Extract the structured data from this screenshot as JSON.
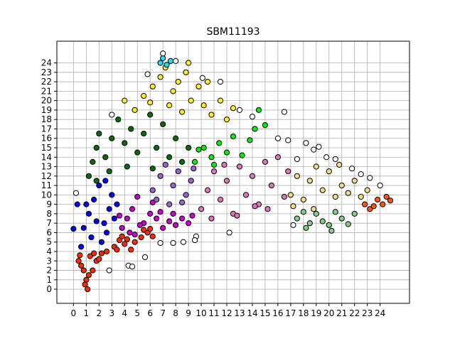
{
  "chart_data": {
    "type": "scatter",
    "title": "SBM11193",
    "xlabel": "",
    "ylabel": "",
    "xlim": [
      -1.3,
      26.3
    ],
    "ylim": [
      -1.5,
      26.3
    ],
    "xticks": [
      "0",
      "1",
      "2",
      "3",
      "4",
      "5",
      "6",
      "7",
      "8",
      "9",
      "10",
      "11",
      "12",
      "13",
      "14",
      "15",
      "16",
      "17",
      "18",
      "19",
      "20",
      "21",
      "22",
      "23",
      "24"
    ],
    "yticks": [
      "0",
      "1",
      "2",
      "3",
      "4",
      "5",
      "6",
      "7",
      "8",
      "9",
      "10",
      "11",
      "12",
      "13",
      "14",
      "15",
      "16",
      "17",
      "18",
      "19",
      "20",
      "21",
      "22",
      "23",
      "24"
    ],
    "grid": true,
    "marker": "circle",
    "marker_edge": "#000000",
    "clusters": [
      {
        "color": "#ff2a00",
        "points": [
          [
            0.4,
            3.0
          ],
          [
            0.8,
            2.0
          ],
          [
            1.0,
            1.0
          ],
          [
            1.1,
            0.0
          ],
          [
            1.3,
            3.5
          ],
          [
            1.8,
            3.0
          ],
          [
            0.6,
            2.5
          ],
          [
            1.5,
            2.0
          ],
          [
            2.2,
            3.8
          ],
          [
            2.6,
            4.0
          ],
          [
            1.2,
            1.5
          ],
          [
            0.9,
            0.5
          ],
          [
            2.0,
            3.2
          ],
          [
            1.6,
            3.8
          ],
          [
            0.5,
            3.6
          ]
        ]
      },
      {
        "color": "#ff2a00",
        "points": [
          [
            3.2,
            4.5
          ],
          [
            3.6,
            5.2
          ],
          [
            4.0,
            4.8
          ],
          [
            4.5,
            4.2
          ],
          [
            3.8,
            5.6
          ],
          [
            4.8,
            5.0
          ],
          [
            3.4,
            4.2
          ],
          [
            4.2,
            5.3
          ]
        ]
      },
      {
        "color": "#ff2a00",
        "points": [
          [
            5.3,
            5.5
          ],
          [
            5.8,
            6.0
          ],
          [
            6.2,
            5.6
          ],
          [
            5.5,
            6.3
          ],
          [
            6.0,
            6.4
          ]
        ]
      },
      {
        "color": "#0000ff",
        "points": [
          [
            0.8,
            6.5
          ],
          [
            1.2,
            8.0
          ],
          [
            1.6,
            9.5
          ],
          [
            2.0,
            11.0
          ],
          [
            2.4,
            7.0
          ],
          [
            2.8,
            8.5
          ],
          [
            3.0,
            10.0
          ],
          [
            1.4,
            5.5
          ],
          [
            2.2,
            5.0
          ],
          [
            0.6,
            4.5
          ],
          [
            1.0,
            9.0
          ],
          [
            2.6,
            6.0
          ],
          [
            3.2,
            7.5
          ],
          [
            3.4,
            9.0
          ],
          [
            1.8,
            7.2
          ],
          [
            2.5,
            11.5
          ]
        ]
      },
      {
        "color": "#cc00cc",
        "points": [
          [
            3.8,
            6.5
          ],
          [
            4.2,
            7.5
          ],
          [
            4.6,
            8.5
          ],
          [
            5.0,
            9.8
          ],
          [
            5.5,
            7.0
          ],
          [
            6.0,
            8.0
          ],
          [
            6.5,
            7.5
          ],
          [
            7.0,
            6.5
          ],
          [
            7.5,
            7.2
          ],
          [
            8.0,
            6.8
          ],
          [
            8.5,
            7.5
          ],
          [
            9.0,
            7.0
          ],
          [
            4.4,
            6.0
          ],
          [
            5.2,
            6.8
          ],
          [
            6.8,
            8.2
          ],
          [
            3.6,
            7.8
          ],
          [
            4.8,
            5.8
          ],
          [
            7.8,
            8.0
          ],
          [
            9.3,
            7.8
          ],
          [
            6.2,
            9.2
          ]
        ]
      },
      {
        "color": "#9966cc",
        "points": [
          [
            6.2,
            10.5
          ],
          [
            6.8,
            12.0
          ],
          [
            7.2,
            13.2
          ],
          [
            7.8,
            11.0
          ],
          [
            8.2,
            12.5
          ],
          [
            8.8,
            10.0
          ],
          [
            9.2,
            11.5
          ],
          [
            6.5,
            9.5
          ],
          [
            7.5,
            9.0
          ],
          [
            8.5,
            9.2
          ],
          [
            9.4,
            12.8
          ]
        ]
      },
      {
        "color": "#dd77bb",
        "points": [
          [
            10.0,
            8.5
          ],
          [
            10.5,
            10.5
          ],
          [
            11.0,
            12.5
          ],
          [
            11.5,
            9.5
          ],
          [
            12.0,
            11.5
          ],
          [
            12.5,
            8.0
          ],
          [
            13.0,
            13.0
          ],
          [
            13.5,
            10.0
          ],
          [
            14.0,
            12.0
          ],
          [
            14.5,
            9.0
          ],
          [
            15.0,
            13.5
          ],
          [
            15.5,
            11.0
          ],
          [
            16.0,
            14.0
          ],
          [
            16.5,
            9.8
          ],
          [
            10.8,
            7.5
          ],
          [
            12.8,
            7.8
          ],
          [
            14.2,
            8.8
          ],
          [
            16.8,
            12.5
          ],
          [
            11.8,
            13.2
          ],
          [
            15.2,
            8.5
          ]
        ]
      },
      {
        "color": "#eedd88",
        "points": [
          [
            17.0,
            10.0
          ],
          [
            17.5,
            12.0
          ],
          [
            18.0,
            9.5
          ],
          [
            18.5,
            11.5
          ],
          [
            19.0,
            13.0
          ],
          [
            19.5,
            10.5
          ],
          [
            20.0,
            12.5
          ],
          [
            20.5,
            9.8
          ],
          [
            21.0,
            11.0
          ],
          [
            21.5,
            10.2
          ],
          [
            22.0,
            11.5
          ],
          [
            22.5,
            9.8
          ],
          [
            23.0,
            10.5
          ],
          [
            17.2,
            8.8
          ],
          [
            18.8,
            8.5
          ],
          [
            20.8,
            13.2
          ]
        ]
      },
      {
        "color": "#88cc88",
        "points": [
          [
            17.5,
            7.5
          ],
          [
            18.0,
            8.2
          ],
          [
            18.5,
            7.0
          ],
          [
            19.0,
            8.0
          ],
          [
            19.5,
            7.2
          ],
          [
            20.0,
            6.8
          ],
          [
            20.5,
            8.2
          ],
          [
            21.0,
            7.5
          ],
          [
            21.5,
            6.9
          ],
          [
            22.0,
            8.0
          ],
          [
            18.2,
            6.5
          ],
          [
            20.2,
            6.2
          ]
        ]
      },
      {
        "color": "#ff5511",
        "points": [
          [
            22.8,
            9.0
          ],
          [
            23.2,
            8.5
          ],
          [
            23.8,
            9.5
          ],
          [
            24.2,
            9.0
          ],
          [
            24.8,
            9.4
          ],
          [
            23.5,
            8.8
          ],
          [
            24.5,
            9.8
          ]
        ]
      },
      {
        "color": "#00ee00",
        "points": [
          [
            9.5,
            13.5
          ],
          [
            10.2,
            15.0
          ],
          [
            10.8,
            14.0
          ],
          [
            11.4,
            15.5
          ],
          [
            12.0,
            14.5
          ],
          [
            12.5,
            16.2
          ],
          [
            13.2,
            14.2
          ],
          [
            13.8,
            15.8
          ],
          [
            14.2,
            17.0
          ],
          [
            14.5,
            19.0
          ],
          [
            15.0,
            17.4
          ],
          [
            11.0,
            13.2
          ],
          [
            9.8,
            14.8
          ]
        ]
      },
      {
        "color": "#0b6b0b",
        "points": [
          [
            1.2,
            12.0
          ],
          [
            1.5,
            13.5
          ],
          [
            1.8,
            15.0
          ],
          [
            2.0,
            16.5
          ],
          [
            2.5,
            14.0
          ],
          [
            3.0,
            16.0
          ],
          [
            3.5,
            18.0
          ],
          [
            4.0,
            15.5
          ],
          [
            4.5,
            17.0
          ],
          [
            5.0,
            14.5
          ],
          [
            5.5,
            16.5
          ],
          [
            6.0,
            18.5
          ],
          [
            6.5,
            15.0
          ],
          [
            7.0,
            17.5
          ],
          [
            7.5,
            14.0
          ],
          [
            8.0,
            16.0
          ],
          [
            8.5,
            13.5
          ],
          [
            9.0,
            15.0
          ],
          [
            2.8,
            12.5
          ],
          [
            4.2,
            13.0
          ],
          [
            6.2,
            12.8
          ],
          [
            1.8,
            11.5
          ]
        ]
      },
      {
        "color": "#ffee22",
        "points": [
          [
            4.0,
            20.0
          ],
          [
            4.8,
            19.0
          ],
          [
            5.5,
            20.5
          ],
          [
            6.2,
            21.5
          ],
          [
            6.8,
            22.5
          ],
          [
            7.2,
            23.5
          ],
          [
            7.8,
            21.0
          ],
          [
            8.2,
            22.0
          ],
          [
            8.8,
            23.0
          ],
          [
            9.2,
            20.0
          ],
          [
            9.8,
            21.5
          ],
          [
            10.2,
            19.5
          ],
          [
            10.8,
            18.5
          ],
          [
            11.5,
            20.0
          ],
          [
            12.0,
            18.0
          ],
          [
            12.5,
            19.2
          ],
          [
            7.5,
            19.5
          ],
          [
            6.0,
            19.8
          ],
          [
            8.5,
            18.8
          ],
          [
            10.5,
            22.0
          ],
          [
            9.0,
            24.0
          ]
        ]
      },
      {
        "color": "#22ddee",
        "points": [
          [
            6.8,
            24.0
          ],
          [
            7.0,
            24.5
          ],
          [
            7.3,
            23.8
          ],
          [
            7.6,
            24.2
          ]
        ]
      },
      {
        "color": "#ffffff",
        "points": [
          [
            4.3,
            2.5
          ],
          [
            4.6,
            2.4
          ],
          [
            2.8,
            2.0
          ],
          [
            5.6,
            3.4
          ],
          [
            7.8,
            4.9
          ],
          [
            8.6,
            5.0
          ],
          [
            9.6,
            5.6
          ],
          [
            10.1,
            22.4
          ],
          [
            11.5,
            22.0
          ],
          [
            12.2,
            6.0
          ],
          [
            16.5,
            18.8
          ],
          [
            18.2,
            15.5
          ],
          [
            18.8,
            14.8
          ],
          [
            19.2,
            15.1
          ],
          [
            16.0,
            16.0
          ],
          [
            13.0,
            19.0
          ],
          [
            14.0,
            18.3
          ],
          [
            17.5,
            13.8
          ],
          [
            23.2,
            11.8
          ],
          [
            24.0,
            11.0
          ],
          [
            0.2,
            10.2
          ],
          [
            5.8,
            22.8
          ],
          [
            8.0,
            24.2
          ],
          [
            7.0,
            25.0
          ],
          [
            16.8,
            15.8
          ],
          [
            17.2,
            6.8
          ],
          [
            19.8,
            14.0
          ],
          [
            20.5,
            13.8
          ],
          [
            21.8,
            12.8
          ],
          [
            22.5,
            12.2
          ],
          [
            3.0,
            18.5
          ],
          [
            9.5,
            5.2
          ],
          [
            6.8,
            4.9
          ]
        ]
      },
      {
        "color": "#0000ff",
        "points": [
          [
            0.0,
            6.4
          ],
          [
            0.3,
            9.0
          ]
        ]
      }
    ]
  }
}
